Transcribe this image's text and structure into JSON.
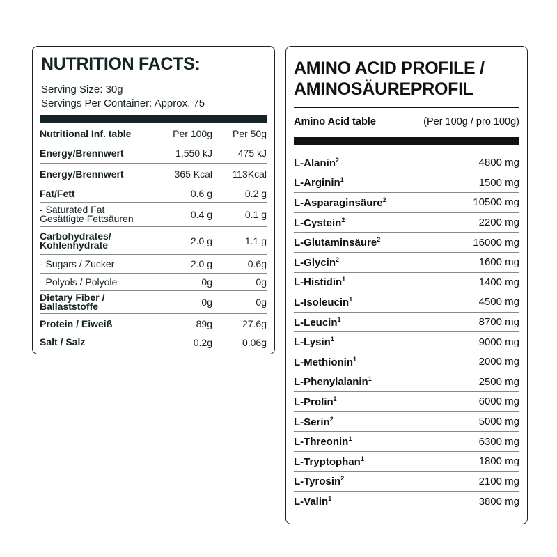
{
  "nutrition": {
    "title": "NUTRITION FACTS:",
    "serving_size": "Serving Size: 30g",
    "servings_per_container": "Servings Per Container: Approx. 75",
    "header": [
      "Nutritional Inf. table",
      "Per 100g",
      "Per 50g"
    ],
    "rows": [
      {
        "name": "Energy/Brennwert",
        "per100": "1,550 kJ",
        "per50": "475 kJ",
        "bold": true
      },
      {
        "name": "Energy/Brennwert",
        "per100": "365 Kcal",
        "per50": "113Kcal",
        "bold": true
      },
      {
        "name": "Fat/Fett",
        "per100": "0.6 g",
        "per50": "0.2 g",
        "bold": true
      },
      {
        "name": "- Saturated Fat",
        "name2": "Gesättigte Fettsäuren",
        "per100": "0.4 g",
        "per50": "0.1 g",
        "bold": false
      },
      {
        "name": "Carbohydrates/",
        "name2": "Kohlenhydrate",
        "per100": "2.0 g",
        "per50": "1.1 g",
        "bold": true
      },
      {
        "name": "- Sugars / Zucker",
        "per100": "2.0 g",
        "per50": "0.6g",
        "bold": false
      },
      {
        "name": "- Polyols / Polyole",
        "per100": "0g",
        "per50": "0g",
        "bold": false
      },
      {
        "name": "Dietary Fiber /",
        "name2": "Ballaststoffe",
        "per100": "0g",
        "per50": "0g",
        "bold": true
      },
      {
        "name": "Protein / Eiweiß",
        "per100": "89g",
        "per50": "27.6g",
        "bold": true
      },
      {
        "name": "Salt / Salz",
        "per100": "0.2g",
        "per50": "0.06g",
        "bold": true
      }
    ]
  },
  "amino": {
    "title_line1": "AMINO ACID PROFILE /",
    "title_line2": "AMINOSÄUREPROFIL",
    "table_label": "Amino Acid table",
    "unit_label": "(Per 100g / pro 100g)",
    "rows": [
      {
        "name": "L-Alanin",
        "sup": "2",
        "value": "4800 mg"
      },
      {
        "name": "L-Arginin",
        "sup": "1",
        "value": "1500 mg"
      },
      {
        "name": "L-Asparaginsäure",
        "sup": "2",
        "value": "10500 mg"
      },
      {
        "name": "L-Cystein",
        "sup": "2",
        "value": "2200 mg"
      },
      {
        "name": "L-Glutaminsäure",
        "sup": "2",
        "value": "16000 mg"
      },
      {
        "name": "L-Glycin",
        "sup": "2",
        "value": "1600 mg"
      },
      {
        "name": "L-Histidin",
        "sup": "1",
        "value": "1400 mg"
      },
      {
        "name": "L-Isoleucin",
        "sup": "1",
        "value": "4500 mg"
      },
      {
        "name": "L-Leucin",
        "sup": "1",
        "value": "8700 mg"
      },
      {
        "name": "L-Lysin",
        "sup": "1",
        "value": "9000 mg"
      },
      {
        "name": "L-Methionin",
        "sup": "1",
        "value": "2000 mg"
      },
      {
        "name": "L-Phenylalanin",
        "sup": "1",
        "value": "2500 mg"
      },
      {
        "name": "L-Prolin",
        "sup": "2",
        "value": "6000 mg"
      },
      {
        "name": "L-Serin",
        "sup": "2",
        "value": "5000 mg"
      },
      {
        "name": "L-Threonin",
        "sup": "1",
        "value": "6300 mg"
      },
      {
        "name": "L-Tryptophan",
        "sup": "1",
        "value": "1800 mg"
      },
      {
        "name": "L-Tyrosin",
        "sup": "2",
        "value": "2100 mg"
      },
      {
        "name": "L-Valin",
        "sup": "1",
        "value": "3800 mg"
      }
    ]
  },
  "colors": {
    "text_dark": "#152226",
    "border": "#222222"
  }
}
